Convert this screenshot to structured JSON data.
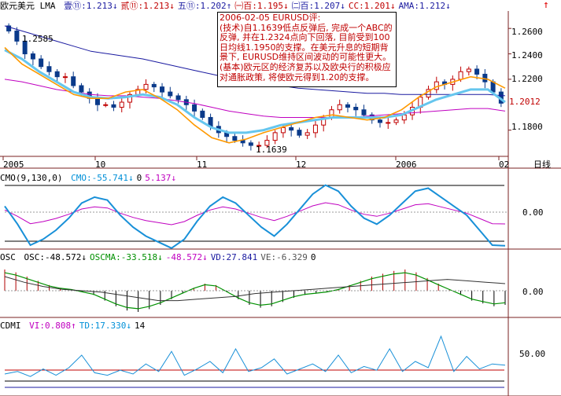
{
  "header": {
    "title": "欧元美元 LMA",
    "items": [
      {
        "text": "壹⑪:1.213↓",
        "color": "#1a1aa0"
      },
      {
        "text": "贰⑪:1.213↓",
        "color": "#c00000"
      },
      {
        "text": "五⑪:1.202↑",
        "color": "#1a1aa0"
      },
      {
        "text": "㈠百:1.195↓",
        "color": "#c00000"
      },
      {
        "text": "㈡百:1.207↓",
        "color": "#1a1aa0"
      },
      {
        "text": "CC:1.201↓",
        "color": "#c00000"
      },
      {
        "text": "AMA:1.212↓",
        "color": "#1a1aa0"
      }
    ],
    "arrow_icon": "red-up-arrow-icon"
  },
  "note": {
    "text": "2006-02-05 EURUSD评:\n(技术)自1.1639低点反弹后, 完成一个ABC的反弹, 并在1.2324点向下回落, 目前受到100日均线1.1950的支撑。在美元升息的短期背景下, EURUSD维持区间波动的可能性更大。(基本)欧元区的经济复苏以及欧央行的积极应对通胀政策, 将使欧元得到1.20的支撑。"
  },
  "price_panel": {
    "high_label": "1.2585",
    "low_label": "1.1639",
    "current_label": "1.2012",
    "y_ticks": [
      "1.2600",
      "1.2400",
      "1.2200",
      "1.1800"
    ],
    "x_ticks": [
      "2005",
      "10",
      "11",
      "12",
      "2006",
      "02"
    ],
    "axis_unit": "日线"
  },
  "cmo_panel": {
    "title": "CMO(9,130,0)",
    "items": [
      {
        "text": "CMO:-55.741↓",
        "color": "#0090d8"
      },
      {
        "text": "0",
        "color": "#000"
      },
      {
        "text": "5.137↓",
        "color": "#c000c0"
      }
    ],
    "y_tick": "0.00"
  },
  "osc_panel": {
    "title": "OSC",
    "items": [
      {
        "text": "OSC:-48.572↓",
        "color": "#000"
      },
      {
        "text": "OSCMA:-33.518↓",
        "color": "#009000"
      },
      {
        "text": "-48.572↓",
        "color": "#c000c0"
      },
      {
        "text": "VD:27.841",
        "color": "#1a1aa0"
      },
      {
        "text": "VE:-6.329",
        "color": "#555555"
      },
      {
        "text": "0",
        "color": "#000"
      }
    ],
    "y_tick": "0.00"
  },
  "cdmi_panel": {
    "title": "CDMI",
    "items": [
      {
        "text": "VI:0.808↑",
        "color": "#c000c0"
      },
      {
        "text": "TD:17.330↓",
        "color": "#0090d8"
      },
      {
        "text": "14",
        "color": "#000"
      }
    ],
    "y_tick": "50.00"
  },
  "colors": {
    "up_candle": "#c00000",
    "down_candle": "#0a3a8a",
    "ma_orange": "#ff9900",
    "ma_light_blue": "#66c6ee",
    "ma_magenta": "#c000c0",
    "ma_navy": "#1a1aa0",
    "cmo_line": "#1890d8"
  },
  "chart_data": {
    "type": "line",
    "title": "欧元美元 LMA",
    "x_ticks": [
      "2005",
      "10",
      "11",
      "12",
      "2006",
      "02"
    ],
    "y_ticks": [
      1.26,
      1.24,
      1.22,
      1.18
    ],
    "ylim": [
      1.16,
      1.27
    ],
    "close_series": {
      "name": "EURUSD",
      "values": [
        1.258,
        1.25,
        1.24,
        1.236,
        1.23,
        1.226,
        1.222,
        1.222,
        1.215,
        1.21,
        1.205,
        1.2,
        1.2,
        1.198,
        1.202,
        1.208,
        1.212,
        1.216,
        1.214,
        1.21,
        1.207,
        1.204,
        1.2,
        1.195,
        1.19,
        1.183,
        1.178,
        1.175,
        1.172,
        1.17,
        1.168,
        1.168,
        1.172,
        1.178,
        1.182,
        1.18,
        1.176,
        1.178,
        1.184,
        1.19,
        1.196,
        1.2,
        1.198,
        1.196,
        1.192,
        1.188,
        1.186,
        1.186,
        1.188,
        1.192,
        1.198,
        1.206,
        1.212,
        1.218,
        1.216,
        1.22,
        1.226,
        1.228,
        1.224,
        1.218,
        1.21,
        1.2012
      ]
    },
    "series": [
      {
        "name": "壹",
        "values": [
          1.245,
          1.232,
          1.224,
          1.216,
          1.208,
          1.205,
          1.205,
          1.21,
          1.212,
          1.205,
          1.196,
          1.184,
          1.174,
          1.17,
          1.173,
          1.178,
          1.182,
          1.186,
          1.19,
          1.192,
          1.19,
          1.188,
          1.19,
          1.196,
          1.206,
          1.214,
          1.218,
          1.222,
          1.22,
          1.213
        ]
      },
      {
        "name": "五",
        "values": [
          1.243,
          1.236,
          1.226,
          1.218,
          1.21,
          1.206,
          1.205,
          1.206,
          1.208,
          1.206,
          1.2,
          1.19,
          1.182,
          1.178,
          1.178,
          1.18,
          1.184,
          1.186,
          1.188,
          1.19,
          1.19,
          1.19,
          1.19,
          1.192,
          1.198,
          1.204,
          1.208,
          1.212,
          1.212,
          1.202
        ]
      },
      {
        "name": "㈠百",
        "values": [
          1.22,
          1.218,
          1.215,
          1.212,
          1.21,
          1.208,
          1.207,
          1.207,
          1.206,
          1.205,
          1.203,
          1.201,
          1.198,
          1.195,
          1.193,
          1.191,
          1.19,
          1.19,
          1.19,
          1.19,
          1.19,
          1.191,
          1.192,
          1.193,
          1.194,
          1.195,
          1.196,
          1.197,
          1.197,
          1.195
        ]
      },
      {
        "name": "㈡百",
        "values": [
          1.262,
          1.258,
          1.254,
          1.25,
          1.246,
          1.242,
          1.24,
          1.238,
          1.236,
          1.233,
          1.23,
          1.227,
          1.224,
          1.221,
          1.219,
          1.217,
          1.215,
          1.213,
          1.212,
          1.211,
          1.21,
          1.209,
          1.209,
          1.208,
          1.208,
          1.208,
          1.208,
          1.208,
          1.208,
          1.207
        ]
      },
      {
        "name": "CMO",
        "values": [
          10,
          -20,
          -55,
          -45,
          -30,
          -10,
          15,
          25,
          20,
          -5,
          -25,
          -40,
          -50,
          -60,
          -45,
          -15,
          10,
          25,
          15,
          -5,
          -25,
          -40,
          -20,
          5,
          30,
          45,
          35,
          10,
          -10,
          -20,
          -5,
          15,
          35,
          40,
          25,
          10,
          -5,
          -30,
          -55,
          -56
        ]
      },
      {
        "name": "CDMI TD",
        "values": [
          10,
          12,
          8,
          14,
          9,
          15,
          25,
          11,
          9,
          13,
          10,
          18,
          12,
          28,
          9,
          14,
          20,
          11,
          30,
          12,
          15,
          22,
          10,
          14,
          18,
          12,
          25,
          11,
          16,
          13,
          30,
          12,
          20,
          15,
          40,
          12,
          24,
          14,
          18,
          17
        ]
      }
    ]
  }
}
